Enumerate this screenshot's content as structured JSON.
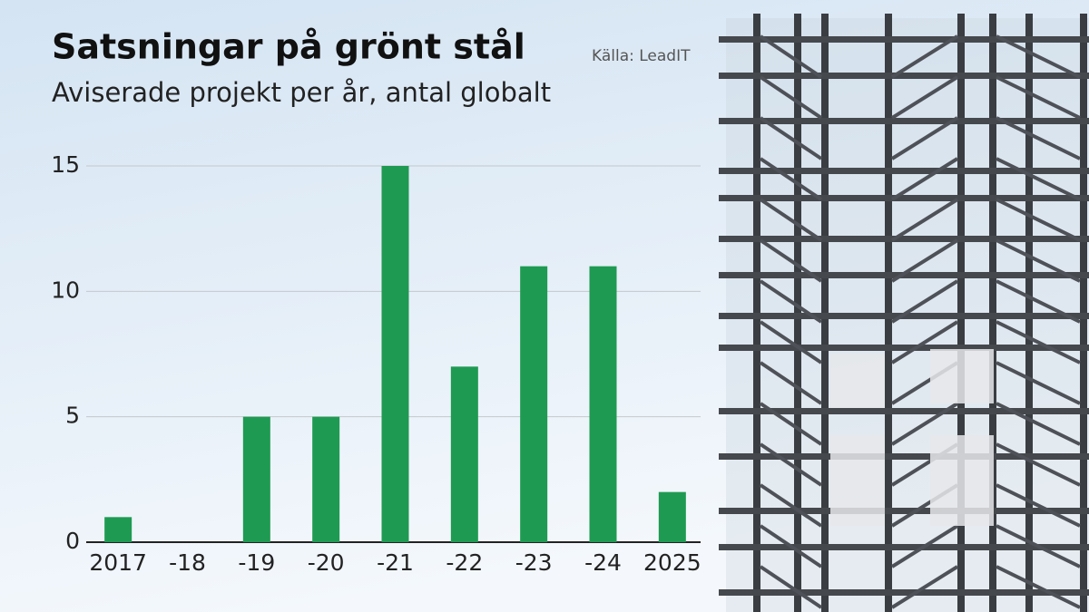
{
  "chart_data": {
    "type": "bar",
    "title": "Satsningar på grönt stål",
    "subtitle": "Aviserade projekt per år, antal globalt",
    "source": "Källa: LeadIT",
    "categories": [
      "2017",
      "-18",
      "-19",
      "-20",
      "-21",
      "-22",
      "-23",
      "-24",
      "2025"
    ],
    "values": [
      1,
      0,
      5,
      5,
      15,
      7,
      11,
      11,
      2
    ],
    "color": "#1f9a52",
    "ylim": [
      0,
      15
    ],
    "yticks": [
      0,
      5,
      10,
      15
    ],
    "grid": true
  }
}
